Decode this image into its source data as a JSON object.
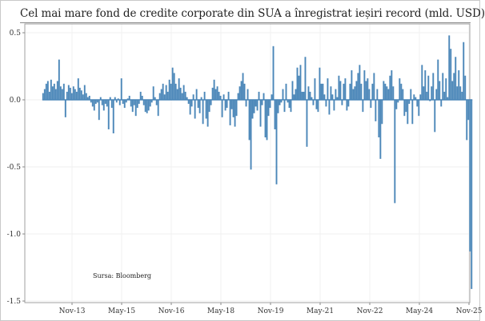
{
  "chart_data": {
    "type": "bar",
    "title": "Cel mai mare fond de credite corporate din SUA a înregistrat ieșiri record (mld. USD)",
    "xlabel": "",
    "ylabel": "",
    "source": "Sursa: Bloomberg",
    "x_unit": "months since Nov-2013",
    "xlim": [
      -11.5,
      144
    ],
    "ylim": [
      -1.5,
      0.55
    ],
    "grid": true,
    "legend": "none",
    "bar_color": "#4a86b8",
    "y_ticks": [
      {
        "value": 0.5,
        "label": "0.5"
      },
      {
        "value": 0.0,
        "label": "0.0"
      },
      {
        "value": -0.5,
        "label": "-0.5"
      },
      {
        "value": -1.0,
        "label": "-1.0"
      },
      {
        "value": -1.5,
        "label": "-1.5"
      }
    ],
    "x_ticks": [
      {
        "value": 0,
        "label": "Nov-13"
      },
      {
        "value": 18,
        "label": "May-15"
      },
      {
        "value": 36,
        "label": "Nov-16"
      },
      {
        "value": 54,
        "label": "May-18"
      },
      {
        "value": 72,
        "label": "Nov-19"
      },
      {
        "value": 90,
        "label": "May-21"
      },
      {
        "value": 108,
        "label": "Nov-22"
      },
      {
        "value": 126,
        "label": "May-24"
      },
      {
        "value": 144,
        "label": "Nov-25"
      }
    ],
    "x_start": -10.5,
    "x_step": 0.58,
    "values": [
      0.05,
      0.08,
      0.12,
      0.14,
      0.06,
      0.15,
      0.1,
      0.12,
      0.08,
      0.14,
      0.3,
      0.1,
      0.08,
      0.12,
      -0.13,
      0.06,
      0.11,
      0.09,
      0.05,
      0.1,
      0.08,
      0.06,
      0.16,
      0.09,
      0.07,
      0.04,
      0.11,
      0.05,
      0.02,
      0.03,
      -0.02,
      -0.05,
      -0.08,
      -0.03,
      -0.02,
      -0.15,
      0.02,
      -0.04,
      -0.08,
      -0.03,
      -0.05,
      -0.22,
      0.02,
      -0.06,
      -0.25,
      0.02,
      -0.02,
      0.01,
      -0.04,
      0.16,
      -0.03,
      -0.06,
      -0.02,
      0.01,
      0.03,
      -0.05,
      -0.09,
      -0.04,
      -0.12,
      -0.06,
      -0.03,
      0.06,
      0.03,
      -0.04,
      -0.09,
      -0.1,
      -0.08,
      -0.05,
      -0.02,
      0.1,
      0.02,
      -0.04,
      -0.12,
      0.05,
      0.08,
      0.12,
      0.04,
      0.11,
      0.06,
      0.15,
      0.12,
      0.24,
      0.2,
      0.12,
      0.08,
      0.16,
      0.09,
      0.05,
      0.11,
      0.06,
      0.02,
      -0.03,
      -0.11,
      -0.05,
      0.04,
      -0.14,
      0.08,
      -0.06,
      -0.1,
      0.02,
      -0.18,
      0.06,
      -0.14,
      -0.2,
      -0.09,
      -0.04,
      0.09,
      0.15,
      0.08,
      0.1,
      0.06,
      0.03,
      -0.13,
      0.04,
      -0.08,
      -0.06,
      0.06,
      -0.19,
      -0.07,
      -0.13,
      -0.2,
      -0.12,
      0.05,
      0.1,
      0.14,
      0.2,
      0.12,
      -0.05,
      0.08,
      -0.3,
      -0.52,
      -0.14,
      -0.1,
      -0.05,
      -0.08,
      0.06,
      -0.2,
      -0.04,
      0.05,
      -0.28,
      -0.3,
      -0.12,
      -0.06,
      0.04,
      0.4,
      -0.22,
      -0.63,
      -0.1,
      -0.04,
      -0.02,
      0.08,
      -0.09,
      0.12,
      -0.02,
      -0.06,
      -0.09,
      0.14,
      0.04,
      0.08,
      0.24,
      0.18,
      0.26,
      0.06,
      0.06,
      0.32,
      -0.35,
      0.1,
      0.06,
      0.02,
      -0.04,
      0.16,
      -0.07,
      -0.09,
      0.24,
      0.12,
      0.12,
      0.04,
      -0.05,
      0.16,
      -0.11,
      0.1,
      0.04,
      -0.08,
      0.08,
      0.02,
      0.18,
      0.14,
      -0.04,
      0.12,
      0.16,
      -0.08,
      -0.05,
      0.12,
      0.22,
      0.08,
      0.1,
      0.14,
      0.2,
      0.26,
      0.12,
      -0.09,
      0.22,
      0.14,
      0.16,
      0.08,
      -0.06,
      0.12,
      0.2,
      -0.16,
      0.08,
      -0.28,
      -0.44,
      -0.18,
      0.14,
      0.12,
      0.1,
      0.08,
      0.18,
      0.22,
      0.1,
      -0.77,
      -0.07,
      -0.02,
      0.16,
      0.12,
      0.08,
      -0.12,
      -0.09,
      -0.18,
      -0.03,
      0.08,
      -0.18,
      0.04,
      0.02,
      -0.05,
      -0.12,
      0.04,
      0.26,
      0.1,
      0.22,
      0.06,
      0.18,
      -0.01,
      0.1,
      0.2,
      -0.24,
      0.08,
      0.3,
      0.14,
      -0.05,
      0.2,
      0.06,
      0.16,
      0.02,
      0.48,
      0.38,
      0.14,
      0.2,
      0.32,
      0.1,
      0.22,
      0.1,
      0.06,
      0.43,
      0.18,
      -0.3,
      -0.15,
      -1.13,
      -1.41
    ]
  }
}
